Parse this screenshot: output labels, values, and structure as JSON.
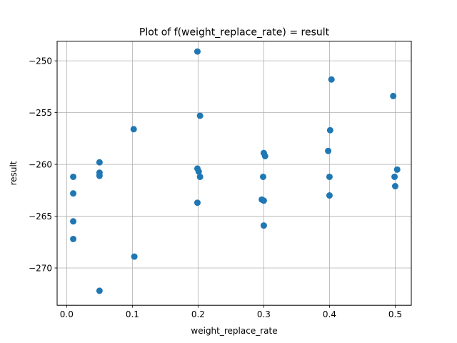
{
  "chart_data": {
    "type": "scatter",
    "title": "Plot of f(weight_replace_rate) = result",
    "xlabel": "weight_replace_rate",
    "ylabel": "result",
    "xlim": [
      -0.0145,
      0.5245
    ],
    "ylim": [
      -273.6,
      -248.1
    ],
    "xticks": [
      0.0,
      0.1,
      0.2,
      0.3,
      0.4,
      0.5
    ],
    "xtick_labels": [
      "0.0",
      "0.1",
      "0.2",
      "0.3",
      "0.4",
      "0.5"
    ],
    "yticks": [
      -270,
      -265,
      -260,
      -255,
      -250
    ],
    "ytick_labels": [
      "−270",
      "−265",
      "−260",
      "−255",
      "−250"
    ],
    "grid": true,
    "marker_color": "#1f77b4",
    "points": [
      {
        "x": 0.01,
        "y": -261.2
      },
      {
        "x": 0.01,
        "y": -262.8
      },
      {
        "x": 0.01,
        "y": -265.5
      },
      {
        "x": 0.01,
        "y": -267.2
      },
      {
        "x": 0.05,
        "y": -259.8
      },
      {
        "x": 0.05,
        "y": -260.8
      },
      {
        "x": 0.05,
        "y": -261.1
      },
      {
        "x": 0.05,
        "y": -272.2
      },
      {
        "x": 0.102,
        "y": -256.6
      },
      {
        "x": 0.103,
        "y": -268.9
      },
      {
        "x": 0.199,
        "y": -249.1
      },
      {
        "x": 0.203,
        "y": -255.3
      },
      {
        "x": 0.199,
        "y": -260.4
      },
      {
        "x": 0.201,
        "y": -260.7
      },
      {
        "x": 0.203,
        "y": -261.2
      },
      {
        "x": 0.199,
        "y": -263.7
      },
      {
        "x": 0.3,
        "y": -258.9
      },
      {
        "x": 0.302,
        "y": -259.2
      },
      {
        "x": 0.299,
        "y": -261.2
      },
      {
        "x": 0.297,
        "y": -263.4
      },
      {
        "x": 0.3,
        "y": -263.5
      },
      {
        "x": 0.3,
        "y": -265.9
      },
      {
        "x": 0.403,
        "y": -251.8
      },
      {
        "x": 0.401,
        "y": -256.7
      },
      {
        "x": 0.398,
        "y": -258.7
      },
      {
        "x": 0.4,
        "y": -261.2
      },
      {
        "x": 0.4,
        "y": -263.0
      },
      {
        "x": 0.497,
        "y": -253.4
      },
      {
        "x": 0.503,
        "y": -260.5
      },
      {
        "x": 0.499,
        "y": -261.2
      },
      {
        "x": 0.5,
        "y": -262.1
      }
    ]
  }
}
